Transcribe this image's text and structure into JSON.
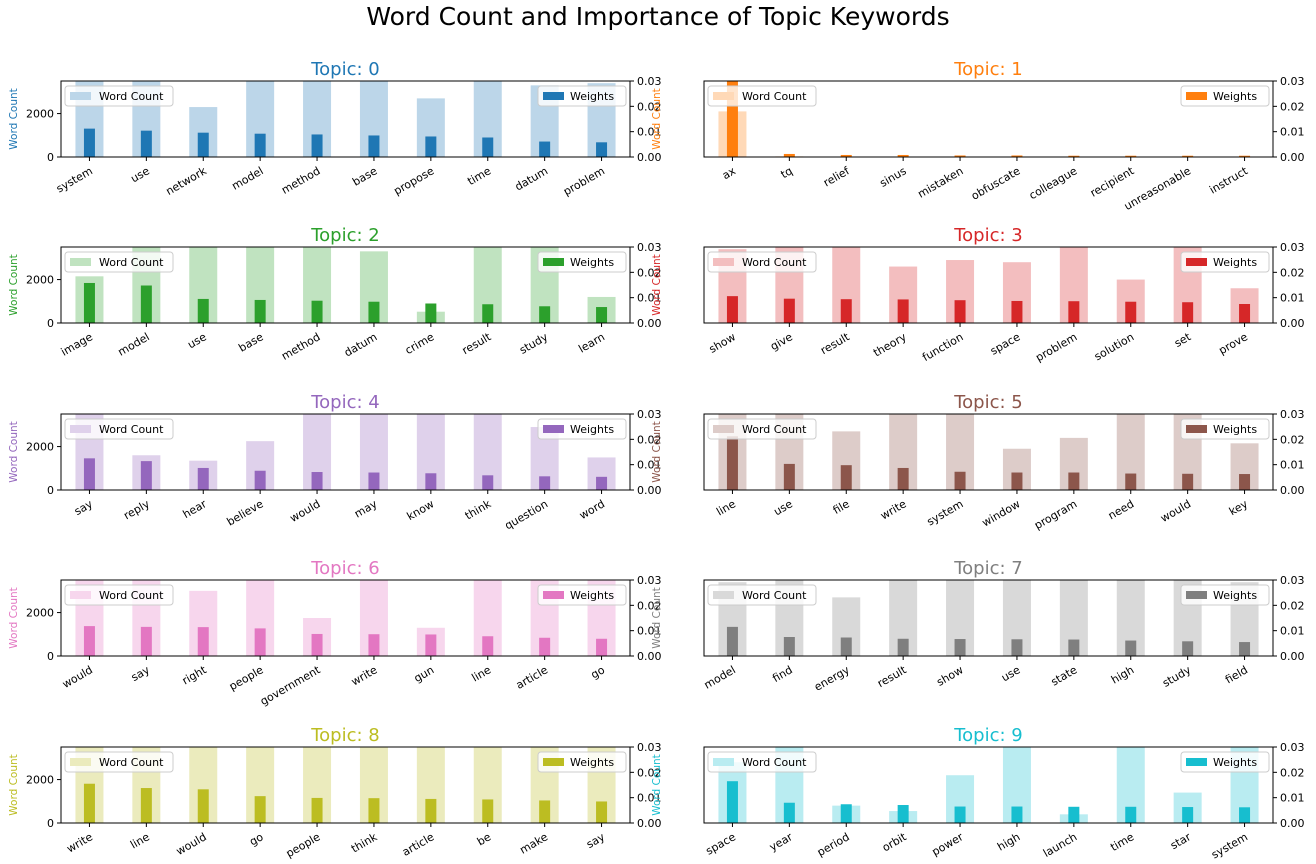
{
  "figure": {
    "title": "Word Count and Importance of Topic Keywords"
  },
  "chart_data": [
    {
      "type": "bar",
      "title": "Topic: 0",
      "color": "#1f77b4",
      "ylabel": "Word Count",
      "y2lim": [
        0,
        0.03
      ],
      "y_ticks": [
        0,
        2000
      ],
      "y2_ticks": [
        "0.00",
        "0.01",
        "0.02",
        "0.03"
      ],
      "legend": [
        "Word Count",
        "Weights"
      ],
      "categories": [
        "system",
        "use",
        "network",
        "model",
        "method",
        "base",
        "propose",
        "time",
        "datum",
        "problem"
      ],
      "series": [
        {
          "name": "Word Count",
          "values": [
            3600,
            3500,
            2300,
            3700,
            3600,
            3500,
            2700,
            3600,
            3300,
            3400
          ]
        },
        {
          "name": "Weights",
          "values": [
            0.0112,
            0.0104,
            0.0096,
            0.0092,
            0.0089,
            0.0085,
            0.0081,
            0.0077,
            0.0061,
            0.0058
          ]
        }
      ]
    },
    {
      "type": "bar",
      "title": "Topic: 1",
      "color": "#ff7f0e",
      "ylabel": "Word Count",
      "y2lim": [
        0,
        0.03
      ],
      "y_ticks": [],
      "y2_ticks": [
        "0.00",
        "0.01",
        "0.02",
        "0.03"
      ],
      "legend": [
        "Word Count",
        "Weights"
      ],
      "categories": [
        "ax",
        "tq",
        "relief",
        "sinus",
        "mistaken",
        "obfuscate",
        "colleague",
        "recipient",
        "unreasonable",
        "instruct"
      ],
      "series": [
        {
          "name": "Word Count",
          "values": [
            2100,
            30,
            20,
            20,
            20,
            20,
            20,
            20,
            20,
            20
          ]
        },
        {
          "name": "Weights",
          "values": [
            0.031,
            0.0012,
            0.0008,
            0.0008,
            0.0006,
            0.0006,
            0.0005,
            0.0005,
            0.0005,
            0.0005
          ]
        }
      ]
    },
    {
      "type": "bar",
      "title": "Topic: 2",
      "color": "#2ca02c",
      "ylabel": "Word Count",
      "y2lim": [
        0,
        0.03
      ],
      "y_ticks": [
        0,
        2000
      ],
      "y2_ticks": [
        "0.00",
        "0.01",
        "0.02",
        "0.03"
      ],
      "legend": [
        "Word Count",
        "Weights"
      ],
      "categories": [
        "image",
        "model",
        "use",
        "base",
        "method",
        "datum",
        "crime",
        "result",
        "study",
        "learn"
      ],
      "series": [
        {
          "name": "Word Count",
          "values": [
            2150,
            3600,
            3600,
            3500,
            3600,
            3300,
            520,
            3600,
            3600,
            1200
          ]
        },
        {
          "name": "Weights",
          "values": [
            0.0158,
            0.0148,
            0.0095,
            0.0091,
            0.0088,
            0.0084,
            0.0077,
            0.0074,
            0.0066,
            0.0063
          ]
        }
      ]
    },
    {
      "type": "bar",
      "title": "Topic: 3",
      "color": "#d62728",
      "ylabel": "Word Count",
      "y2lim": [
        0,
        0.03
      ],
      "y_ticks": [],
      "y2_ticks": [
        "0.00",
        "0.01",
        "0.02",
        "0.03"
      ],
      "legend": [
        "Word Count",
        "Weights"
      ],
      "categories": [
        "show",
        "give",
        "result",
        "theory",
        "function",
        "space",
        "problem",
        "solution",
        "set",
        "prove"
      ],
      "series": [
        {
          "name": "Word Count",
          "values": [
            3400,
            3600,
            3600,
            2600,
            2900,
            2800,
            3600,
            2000,
            3500,
            1600
          ]
        },
        {
          "name": "Weights",
          "values": [
            0.0106,
            0.0096,
            0.0094,
            0.0093,
            0.009,
            0.0087,
            0.0086,
            0.0084,
            0.0082,
            0.0075
          ]
        }
      ]
    },
    {
      "type": "bar",
      "title": "Topic: 4",
      "color": "#9467bd",
      "ylabel": "Word Count",
      "y2lim": [
        0,
        0.03
      ],
      "y_ticks": [
        0,
        2000
      ],
      "y2_ticks": [
        "0.00",
        "0.01",
        "0.02",
        "0.03"
      ],
      "legend": [
        "Word Count",
        "Weights"
      ],
      "categories": [
        "say",
        "reply",
        "hear",
        "believe",
        "would",
        "may",
        "know",
        "think",
        "question",
        "word"
      ],
      "series": [
        {
          "name": "Word Count",
          "values": [
            3500,
            1600,
            1350,
            2250,
            3500,
            3500,
            3500,
            3600,
            2900,
            1500
          ]
        },
        {
          "name": "Weights",
          "values": [
            0.0125,
            0.0114,
            0.0087,
            0.0076,
            0.0071,
            0.0069,
            0.0066,
            0.0058,
            0.0054,
            0.0052
          ]
        }
      ]
    },
    {
      "type": "bar",
      "title": "Topic: 5",
      "color": "#8c564b",
      "ylabel": "Word Count",
      "y2lim": [
        0,
        0.03
      ],
      "y_ticks": [],
      "y2_ticks": [
        "0.00",
        "0.01",
        "0.02",
        "0.03"
      ],
      "legend": [
        "Word Count",
        "Weights"
      ],
      "categories": [
        "line",
        "use",
        "file",
        "write",
        "system",
        "window",
        "program",
        "need",
        "would",
        "key"
      ],
      "series": [
        {
          "name": "Word Count",
          "values": [
            3500,
            3600,
            2700,
            3600,
            3500,
            1900,
            2400,
            3600,
            3600,
            2150
          ]
        },
        {
          "name": "Weights",
          "values": [
            0.0212,
            0.0103,
            0.0098,
            0.0087,
            0.0072,
            0.0069,
            0.0069,
            0.0065,
            0.0064,
            0.0063
          ]
        }
      ]
    },
    {
      "type": "bar",
      "title": "Topic: 6",
      "color": "#e377c2",
      "ylabel": "Word Count",
      "y2lim": [
        0,
        0.03
      ],
      "y_ticks": [
        0,
        2000
      ],
      "y2_ticks": [
        "0.00",
        "0.01",
        "0.02",
        "0.03"
      ],
      "legend": [
        "Word Count",
        "Weights"
      ],
      "categories": [
        "would",
        "say",
        "right",
        "people",
        "government",
        "write",
        "gun",
        "line",
        "article",
        "go"
      ],
      "series": [
        {
          "name": "Word Count",
          "values": [
            3600,
            3600,
            3000,
            3600,
            1750,
            3600,
            1300,
            3600,
            3600,
            3600
          ]
        },
        {
          "name": "Weights",
          "values": [
            0.0118,
            0.0115,
            0.0114,
            0.0109,
            0.0087,
            0.0086,
            0.0085,
            0.0078,
            0.0072,
            0.0068
          ]
        }
      ]
    },
    {
      "type": "bar",
      "title": "Topic: 7",
      "color": "#7f7f7f",
      "ylabel": "Word Count",
      "y2lim": [
        0,
        0.03
      ],
      "y_ticks": [],
      "y2_ticks": [
        "0.00",
        "0.01",
        "0.02",
        "0.03"
      ],
      "legend": [
        "Word Count",
        "Weights"
      ],
      "categories": [
        "model",
        "find",
        "energy",
        "result",
        "show",
        "use",
        "state",
        "high",
        "study",
        "field"
      ],
      "series": [
        {
          "name": "Word Count",
          "values": [
            3400,
            3600,
            2700,
            3600,
            3600,
            3600,
            3500,
            3600,
            3600,
            3400
          ]
        },
        {
          "name": "Weights",
          "values": [
            0.0115,
            0.0075,
            0.0073,
            0.0068,
            0.0067,
            0.0066,
            0.0065,
            0.0061,
            0.0058,
            0.0055
          ]
        }
      ]
    },
    {
      "type": "bar",
      "title": "Topic: 8",
      "color": "#bcbd22",
      "ylabel": "Word Count",
      "y2lim": [
        0,
        0.03
      ],
      "y_ticks": [
        0,
        2000
      ],
      "y2_ticks": [
        "0.00",
        "0.01",
        "0.02",
        "0.03"
      ],
      "legend": [
        "Word Count",
        "Weights"
      ],
      "categories": [
        "write",
        "line",
        "would",
        "go",
        "people",
        "think",
        "article",
        "be",
        "make",
        "say"
      ],
      "series": [
        {
          "name": "Word Count",
          "values": [
            3600,
            3600,
            3600,
            3600,
            3600,
            3600,
            3600,
            3600,
            3600,
            3600
          ]
        },
        {
          "name": "Weights",
          "values": [
            0.0155,
            0.0138,
            0.0133,
            0.0106,
            0.0099,
            0.0098,
            0.0095,
            0.0093,
            0.0089,
            0.0085
          ]
        }
      ]
    },
    {
      "type": "bar",
      "title": "Topic: 9",
      "color": "#17becf",
      "ylabel": "Word Count",
      "y2lim": [
        0,
        0.03
      ],
      "y_ticks": [],
      "y2_ticks": [
        "0.00",
        "0.01",
        "0.02",
        "0.03"
      ],
      "legend": [
        "Word Count",
        "Weights"
      ],
      "categories": [
        "space",
        "year",
        "period",
        "orbit",
        "power",
        "high",
        "launch",
        "time",
        "star",
        "system"
      ],
      "series": [
        {
          "name": "Word Count",
          "values": [
            2800,
            3600,
            800,
            550,
            2200,
            3600,
            400,
            3600,
            1400,
            3600
          ]
        },
        {
          "name": "Weights",
          "values": [
            0.0165,
            0.008,
            0.0074,
            0.0071,
            0.0065,
            0.0065,
            0.0064,
            0.0064,
            0.0063,
            0.0062
          ]
        }
      ]
    }
  ]
}
